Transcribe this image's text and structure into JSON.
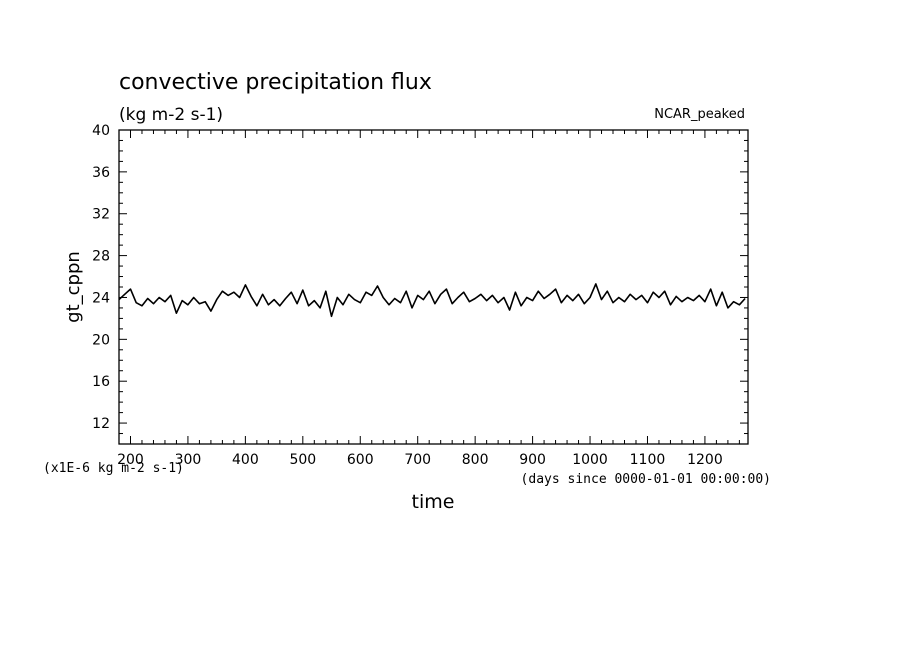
{
  "chart_data": {
    "type": "line",
    "title": "convective precipitation flux",
    "subtitle": "(kg m-2 s-1)",
    "tag": "NCAR_peaked",
    "ylabel": "gt_cppn",
    "xlabel": "time",
    "x_unit": "(days since 0000-01-01 00:00:00)",
    "y_unit": "(x1E-6 kg m-2 s-1)",
    "xlim": [
      180,
      1275
    ],
    "ylim": [
      10,
      40
    ],
    "x_ticks": [
      200,
      300,
      400,
      500,
      600,
      700,
      800,
      900,
      1000,
      1100,
      1200
    ],
    "x_tick_labels": [
      "200",
      "300",
      "400",
      "500",
      "600",
      "700",
      "800",
      "900",
      "1000",
      "1100",
      "1200"
    ],
    "y_ticks": [
      12,
      16,
      20,
      24,
      28,
      32,
      36,
      40
    ],
    "y_tick_labels": [
      "12",
      "16",
      "20",
      "24",
      "28",
      "32",
      "36",
      "40"
    ],
    "grid": false,
    "legend": "none",
    "line_color": "#000000",
    "series": [
      {
        "x": [
          180,
          190,
          200,
          210,
          220,
          230,
          240,
          250,
          260,
          270,
          280,
          290,
          300,
          310,
          320,
          330,
          340,
          350,
          360,
          370,
          380,
          390,
          400,
          410,
          420,
          430,
          440,
          450,
          460,
          470,
          480,
          490,
          500,
          510,
          520,
          530,
          540,
          550,
          560,
          570,
          580,
          590,
          600,
          610,
          620,
          630,
          640,
          650,
          660,
          670,
          680,
          690,
          700,
          710,
          720,
          730,
          740,
          750,
          760,
          770,
          780,
          790,
          800,
          810,
          820,
          830,
          840,
          850,
          860,
          870,
          880,
          890,
          900,
          910,
          920,
          930,
          940,
          950,
          960,
          970,
          980,
          990,
          1000,
          1010,
          1020,
          1030,
          1040,
          1050,
          1060,
          1070,
          1080,
          1090,
          1100,
          1110,
          1120,
          1130,
          1140,
          1150,
          1160,
          1170,
          1180,
          1190,
          1200,
          1210,
          1220,
          1230,
          1240,
          1250,
          1260,
          1270
        ],
        "values": [
          23.8,
          24.3,
          24.8,
          23.5,
          23.2,
          23.9,
          23.4,
          24.0,
          23.6,
          24.2,
          22.5,
          23.7,
          23.3,
          24.0,
          23.4,
          23.6,
          22.7,
          23.8,
          24.6,
          24.2,
          24.5,
          24.0,
          25.2,
          24.1,
          23.2,
          24.3,
          23.3,
          23.8,
          23.2,
          23.9,
          24.5,
          23.4,
          24.7,
          23.2,
          23.7,
          23.0,
          24.6,
          22.2,
          24.0,
          23.3,
          24.3,
          23.8,
          23.5,
          24.5,
          24.2,
          25.1,
          24.0,
          23.3,
          23.9,
          23.5,
          24.6,
          23.0,
          24.2,
          23.8,
          24.6,
          23.4,
          24.3,
          24.8,
          23.4,
          24.0,
          24.5,
          23.6,
          23.9,
          24.3,
          23.7,
          24.2,
          23.5,
          24.0,
          22.8,
          24.5,
          23.2,
          24.0,
          23.7,
          24.6,
          23.9,
          24.3,
          24.8,
          23.5,
          24.2,
          23.7,
          24.3,
          23.4,
          24.0,
          25.3,
          23.8,
          24.6,
          23.5,
          24.0,
          23.6,
          24.3,
          23.8,
          24.2,
          23.5,
          24.5,
          24.0,
          24.6,
          23.3,
          24.1,
          23.6,
          24.0,
          23.7,
          24.2,
          23.6,
          24.8,
          23.2,
          24.5,
          23.0,
          23.6,
          23.3,
          23.9
        ]
      }
    ]
  }
}
